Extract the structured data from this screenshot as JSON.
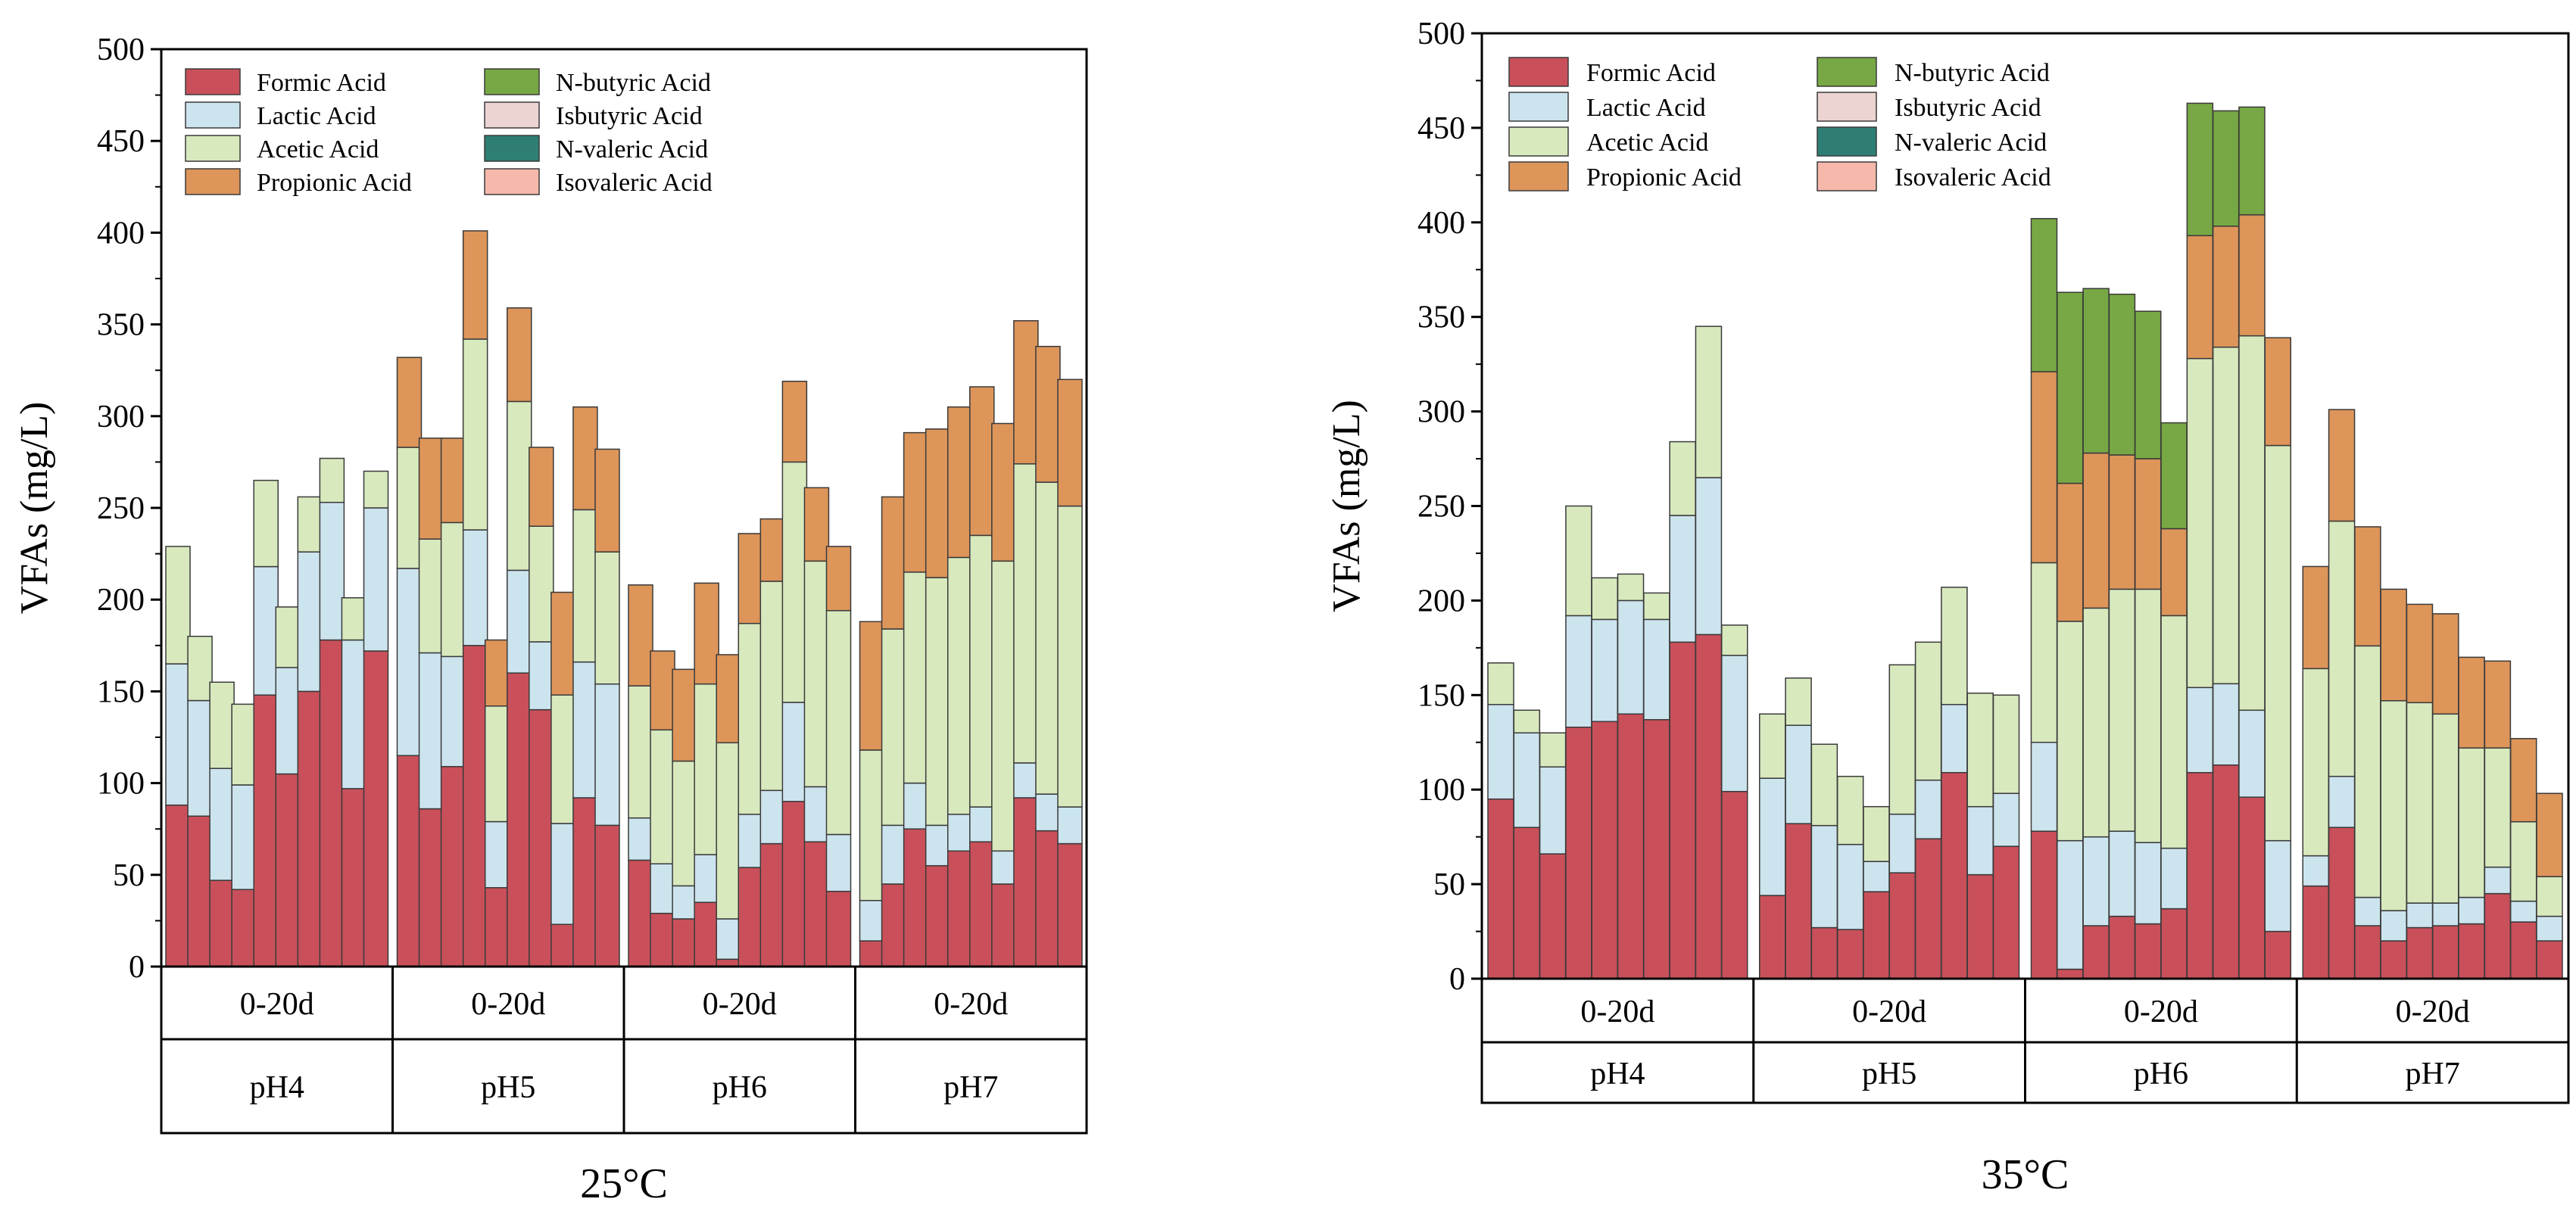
{
  "colors": {
    "Formic Acid": "#c9505a",
    "Lactic Acid": "#cce4ee",
    "Acetic Acid": "#d8e9be",
    "Propionic Acid": "#dd955a",
    "N-butyric Acid": "#77a845",
    "Isbutyric Acid": "#ebd4d2",
    "N-valeric Acid": "#2e7e74",
    "Isovaleric Acid": "#f6b8ab"
  },
  "chart_data": [
    {
      "type": "bar",
      "stacked": true,
      "caption": "25°C",
      "ylabel": "VFAs (mg/L)",
      "ylim": [
        0,
        500
      ],
      "yticks": [
        0,
        50,
        100,
        150,
        200,
        250,
        300,
        350,
        400,
        450,
        500
      ],
      "legend_position": "top-left",
      "legend": [
        "Formic Acid",
        "Lactic Acid",
        "Acetic Acid",
        "Propionic Acid",
        "N-butyric Acid",
        "Isbutyric Acid",
        "N-valeric Acid",
        "Isovaleric Acid"
      ],
      "groups": [
        {
          "period": "0-20d",
          "ph": "pH4",
          "bars": [
            {
              "Formic Acid": 88,
              "Lactic Acid": 77,
              "Acetic Acid": 64
            },
            {
              "Formic Acid": 82,
              "Lactic Acid": 63,
              "Acetic Acid": 35
            },
            {
              "Formic Acid": 47,
              "Lactic Acid": 61,
              "Acetic Acid": 47
            },
            {
              "Formic Acid": 42,
              "Lactic Acid": 57,
              "Acetic Acid": 44
            },
            {
              "Formic Acid": 148,
              "Lactic Acid": 70,
              "Acetic Acid": 47
            },
            {
              "Formic Acid": 105,
              "Lactic Acid": 58,
              "Acetic Acid": 33
            },
            {
              "Formic Acid": 150,
              "Lactic Acid": 76,
              "Acetic Acid": 30
            },
            {
              "Formic Acid": 178,
              "Lactic Acid": 75,
              "Acetic Acid": 24
            },
            {
              "Formic Acid": 97,
              "Lactic Acid": 81,
              "Acetic Acid": 23
            },
            {
              "Formic Acid": 172,
              "Lactic Acid": 78,
              "Acetic Acid": 20
            }
          ]
        },
        {
          "period": "0-20d",
          "ph": "pH5",
          "bars": [
            {
              "Formic Acid": 115,
              "Lactic Acid": 102,
              "Acetic Acid": 66,
              "Propionic Acid": 49
            },
            {
              "Formic Acid": 86,
              "Lactic Acid": 85,
              "Acetic Acid": 62,
              "Propionic Acid": 55
            },
            {
              "Formic Acid": 109,
              "Lactic Acid": 60,
              "Acetic Acid": 73,
              "Propionic Acid": 46
            },
            {
              "Formic Acid": 175,
              "Lactic Acid": 63,
              "Acetic Acid": 104,
              "Propionic Acid": 59
            },
            {
              "Formic Acid": 43,
              "Lactic Acid": 36,
              "Acetic Acid": 63,
              "Propionic Acid": 36
            },
            {
              "Formic Acid": 160,
              "Lactic Acid": 56,
              "Acetic Acid": 92,
              "Propionic Acid": 51
            },
            {
              "Formic Acid": 140,
              "Lactic Acid": 37,
              "Acetic Acid": 63,
              "Propionic Acid": 43
            },
            {
              "Formic Acid": 23,
              "Lactic Acid": 55,
              "Acetic Acid": 70,
              "Propionic Acid": 56
            },
            {
              "Formic Acid": 92,
              "Lactic Acid": 74,
              "Acetic Acid": 83,
              "Propionic Acid": 56
            },
            {
              "Formic Acid": 77,
              "Lactic Acid": 77,
              "Acetic Acid": 72,
              "Propionic Acid": 56
            }
          ]
        },
        {
          "period": "0-20d",
          "ph": "pH6",
          "bars": [
            {
              "Formic Acid": 58,
              "Lactic Acid": 23,
              "Acetic Acid": 72,
              "Propionic Acid": 55
            },
            {
              "Formic Acid": 29,
              "Lactic Acid": 27,
              "Acetic Acid": 73,
              "Propionic Acid": 43
            },
            {
              "Formic Acid": 26,
              "Lactic Acid": 18,
              "Acetic Acid": 68,
              "Propionic Acid": 50
            },
            {
              "Formic Acid": 35,
              "Lactic Acid": 26,
              "Acetic Acid": 93,
              "Propionic Acid": 55
            },
            {
              "Formic Acid": 4,
              "Lactic Acid": 22,
              "Acetic Acid": 96,
              "Propionic Acid": 48
            },
            {
              "Formic Acid": 54,
              "Lactic Acid": 29,
              "Acetic Acid": 104,
              "Propionic Acid": 49
            },
            {
              "Formic Acid": 67,
              "Lactic Acid": 29,
              "Acetic Acid": 114,
              "Propionic Acid": 34
            },
            {
              "Formic Acid": 90,
              "Lactic Acid": 54,
              "Acetic Acid": 131,
              "Propionic Acid": 44
            },
            {
              "Formic Acid": 68,
              "Lactic Acid": 30,
              "Acetic Acid": 123,
              "Propionic Acid": 40
            },
            {
              "Formic Acid": 41,
              "Lactic Acid": 31,
              "Acetic Acid": 122,
              "Propionic Acid": 35
            }
          ]
        },
        {
          "period": "0-20d",
          "ph": "pH7",
          "bars": [
            {
              "Formic Acid": 14,
              "Lactic Acid": 22,
              "Acetic Acid": 82,
              "Propionic Acid": 70
            },
            {
              "Formic Acid": 45,
              "Lactic Acid": 32,
              "Acetic Acid": 107,
              "Propionic Acid": 72
            },
            {
              "Formic Acid": 75,
              "Lactic Acid": 25,
              "Acetic Acid": 115,
              "Propionic Acid": 76
            },
            {
              "Formic Acid": 55,
              "Lactic Acid": 22,
              "Acetic Acid": 135,
              "Propionic Acid": 81
            },
            {
              "Formic Acid": 63,
              "Lactic Acid": 20,
              "Acetic Acid": 140,
              "Propionic Acid": 82
            },
            {
              "Formic Acid": 68,
              "Lactic Acid": 19,
              "Acetic Acid": 148,
              "Propionic Acid": 81
            },
            {
              "Formic Acid": 45,
              "Lactic Acid": 18,
              "Acetic Acid": 158,
              "Propionic Acid": 75
            },
            {
              "Formic Acid": 92,
              "Lactic Acid": 19,
              "Acetic Acid": 163,
              "Propionic Acid": 78
            },
            {
              "Formic Acid": 74,
              "Lactic Acid": 20,
              "Acetic Acid": 170,
              "Propionic Acid": 74
            },
            {
              "Formic Acid": 67,
              "Lactic Acid": 20,
              "Acetic Acid": 164,
              "Propionic Acid": 69
            }
          ]
        }
      ]
    },
    {
      "type": "bar",
      "stacked": true,
      "caption": "35°C",
      "ylabel": "VFAs (mg/L)",
      "ylim": [
        0,
        500
      ],
      "yticks": [
        0,
        50,
        100,
        150,
        200,
        250,
        300,
        350,
        400,
        450,
        500
      ],
      "legend_position": "top-left",
      "legend": [
        "Formic Acid",
        "Lactic Acid",
        "Acetic Acid",
        "Propionic Acid",
        "N-butyric Acid",
        "Isbutyric Acid",
        "N-valeric Acid",
        "Isovaleric Acid"
      ],
      "groups": [
        {
          "period": "0-20d",
          "ph": "pH4",
          "bars": [
            {
              "Formic Acid": 95,
              "Lactic Acid": 50,
              "Acetic Acid": 22
            },
            {
              "Formic Acid": 80,
              "Lactic Acid": 50,
              "Acetic Acid": 12
            },
            {
              "Formic Acid": 66,
              "Lactic Acid": 46,
              "Acetic Acid": 18
            },
            {
              "Formic Acid": 133,
              "Lactic Acid": 59,
              "Acetic Acid": 58
            },
            {
              "Formic Acid": 136,
              "Lactic Acid": 54,
              "Acetic Acid": 22
            },
            {
              "Formic Acid": 140,
              "Lactic Acid": 60,
              "Acetic Acid": 14
            },
            {
              "Formic Acid": 137,
              "Lactic Acid": 53,
              "Acetic Acid": 14
            },
            {
              "Formic Acid": 178,
              "Lactic Acid": 67,
              "Acetic Acid": 39
            },
            {
              "Formic Acid": 182,
              "Lactic Acid": 83,
              "Acetic Acid": 80
            },
            {
              "Formic Acid": 99,
              "Lactic Acid": 72,
              "Acetic Acid": 16
            }
          ]
        },
        {
          "period": "0-20d",
          "ph": "pH5",
          "bars": [
            {
              "Formic Acid": 44,
              "Lactic Acid": 62,
              "Acetic Acid": 34
            },
            {
              "Formic Acid": 82,
              "Lactic Acid": 52,
              "Acetic Acid": 25
            },
            {
              "Formic Acid": 27,
              "Lactic Acid": 54,
              "Acetic Acid": 43
            },
            {
              "Formic Acid": 26,
              "Lactic Acid": 45,
              "Acetic Acid": 36
            },
            {
              "Formic Acid": 46,
              "Lactic Acid": 16,
              "Acetic Acid": 29
            },
            {
              "Formic Acid": 56,
              "Lactic Acid": 31,
              "Acetic Acid": 79
            },
            {
              "Formic Acid": 74,
              "Lactic Acid": 31,
              "Acetic Acid": 73
            },
            {
              "Formic Acid": 109,
              "Lactic Acid": 36,
              "Acetic Acid": 62
            },
            {
              "Formic Acid": 55,
              "Lactic Acid": 36,
              "Acetic Acid": 60
            },
            {
              "Formic Acid": 70,
              "Lactic Acid": 28,
              "Acetic Acid": 52
            }
          ]
        },
        {
          "period": "0-20d",
          "ph": "pH6",
          "bars": [
            {
              "Formic Acid": 78,
              "Lactic Acid": 47,
              "Acetic Acid": 95,
              "Propionic Acid": 101,
              "N-butyric Acid": 81
            },
            {
              "Formic Acid": 5,
              "Lactic Acid": 68,
              "Acetic Acid": 116,
              "Propionic Acid": 73,
              "N-butyric Acid": 101
            },
            {
              "Formic Acid": 28,
              "Lactic Acid": 47,
              "Acetic Acid": 121,
              "Propionic Acid": 82,
              "N-butyric Acid": 87
            },
            {
              "Formic Acid": 33,
              "Lactic Acid": 45,
              "Acetic Acid": 128,
              "Propionic Acid": 71,
              "N-butyric Acid": 85
            },
            {
              "Formic Acid": 29,
              "Lactic Acid": 43,
              "Acetic Acid": 134,
              "Propionic Acid": 69,
              "N-butyric Acid": 78
            },
            {
              "Formic Acid": 37,
              "Lactic Acid": 32,
              "Acetic Acid": 123,
              "Propionic Acid": 46,
              "N-butyric Acid": 56
            },
            {
              "Formic Acid": 109,
              "Lactic Acid": 45,
              "Acetic Acid": 174,
              "Propionic Acid": 65,
              "N-butyric Acid": 70
            },
            {
              "Formic Acid": 113,
              "Lactic Acid": 43,
              "Acetic Acid": 178,
              "Propionic Acid": 64,
              "N-butyric Acid": 61
            },
            {
              "Formic Acid": 96,
              "Lactic Acid": 46,
              "Acetic Acid": 198,
              "Propionic Acid": 64,
              "N-butyric Acid": 57
            },
            {
              "Formic Acid": 25,
              "Lactic Acid": 48,
              "Acetic Acid": 209,
              "Propionic Acid": 57
            }
          ]
        },
        {
          "period": "0-20d",
          "ph": "pH7",
          "bars": [
            {
              "Formic Acid": 49,
              "Lactic Acid": 16,
              "Acetic Acid": 99,
              "Propionic Acid": 54
            },
            {
              "Formic Acid": 80,
              "Lactic Acid": 27,
              "Acetic Acid": 135,
              "Propionic Acid": 59
            },
            {
              "Formic Acid": 28,
              "Lactic Acid": 15,
              "Acetic Acid": 133,
              "Propionic Acid": 63
            },
            {
              "Formic Acid": 20,
              "Lactic Acid": 16,
              "Acetic Acid": 111,
              "Propionic Acid": 59
            },
            {
              "Formic Acid": 27,
              "Lactic Acid": 13,
              "Acetic Acid": 106,
              "Propionic Acid": 52
            },
            {
              "Formic Acid": 28,
              "Lactic Acid": 12,
              "Acetic Acid": 100,
              "Propionic Acid": 53
            },
            {
              "Formic Acid": 29,
              "Lactic Acid": 14,
              "Acetic Acid": 79,
              "Propionic Acid": 48
            },
            {
              "Formic Acid": 45,
              "Lactic Acid": 14,
              "Acetic Acid": 63,
              "Propionic Acid": 46
            },
            {
              "Formic Acid": 30,
              "Lactic Acid": 11,
              "Acetic Acid": 42,
              "Propionic Acid": 44
            },
            {
              "Formic Acid": 20,
              "Lactic Acid": 13,
              "Acetic Acid": 21,
              "Propionic Acid": 44
            }
          ]
        }
      ]
    }
  ]
}
